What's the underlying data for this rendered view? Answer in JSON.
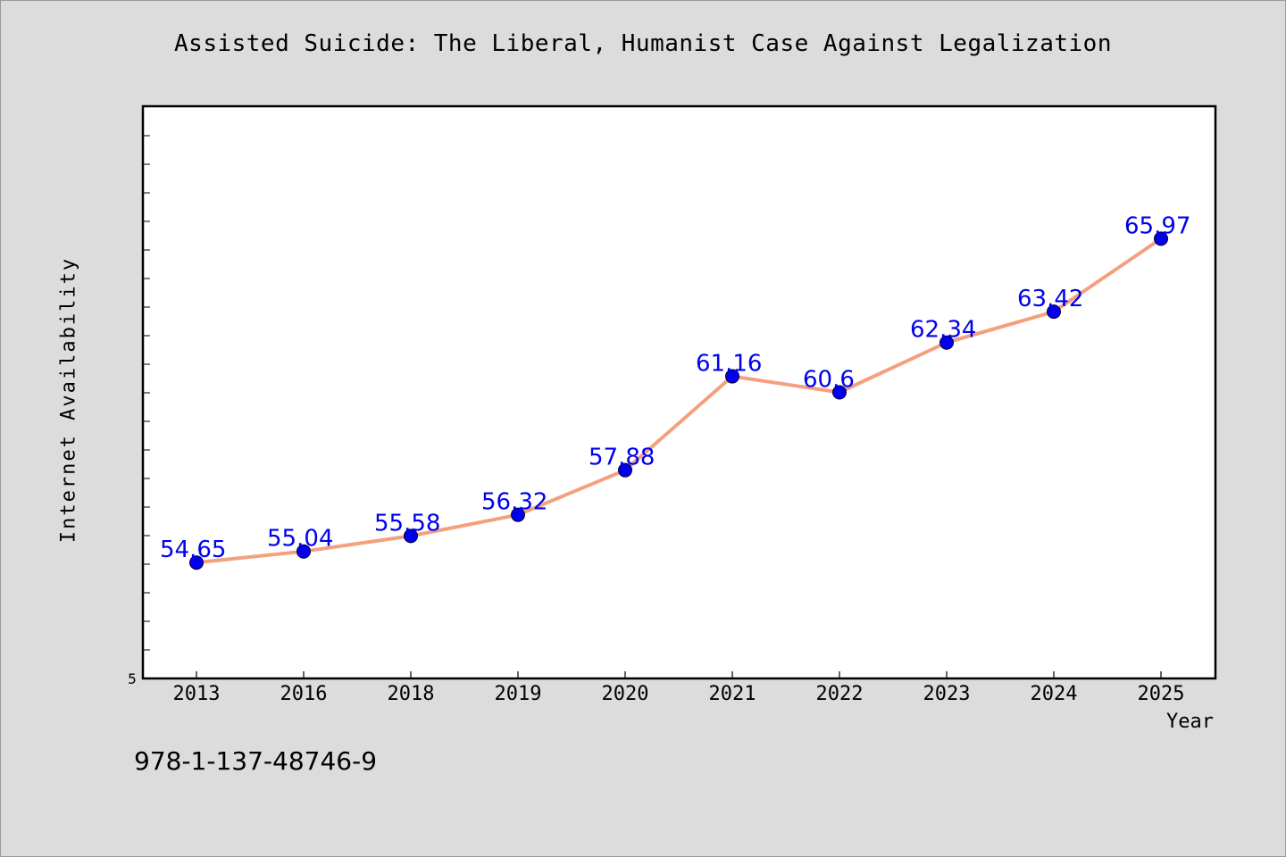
{
  "chart_data": {
    "type": "line",
    "title": "Assisted Suicide: The Liberal, Humanist Case Against Legalization",
    "xlabel": "Year",
    "ylabel": "Internet Availability",
    "categories": [
      "2013",
      "2016",
      "2018",
      "2019",
      "2020",
      "2021",
      "2022",
      "2023",
      "2024",
      "2025"
    ],
    "series": [
      {
        "values": [
          54.65,
          55.04,
          55.58,
          56.32,
          57.88,
          61.16,
          60.6,
          62.34,
          63.42,
          65.97
        ],
        "labels": [
          "54.65",
          "55.04",
          "55.58",
          "56.32",
          "57.88",
          "61.16",
          "60.6",
          "62.34",
          "63.42",
          "65.97"
        ]
      }
    ],
    "y_tick_labels": [
      "5"
    ],
    "ylim": [
      50.6,
      70.6
    ],
    "grid": false,
    "colors": {
      "line": "#f4a07e",
      "marker": "#0000ee",
      "label": "#0000ee",
      "plot_bg": "#ffffff",
      "page_bg": "#dcdcdc"
    }
  },
  "footer": {
    "isbn": "978-1-137-48746-9"
  }
}
